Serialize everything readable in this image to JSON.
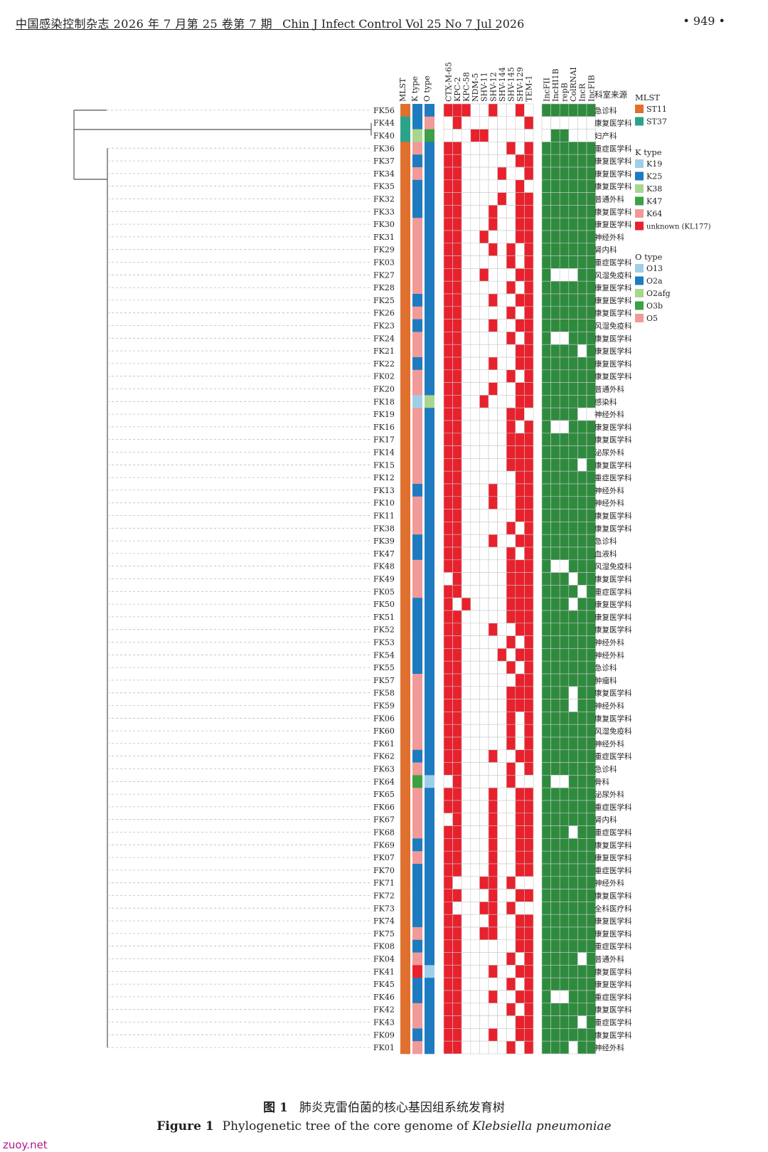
{
  "header": {
    "journal_cn": "中国感染控制杂志 2026 年 7 月第 25 卷第 7 期",
    "journal_en": "Chin J Infect Control Vol 25 No 7 Jul 2026",
    "page_number": "• 949 •"
  },
  "caption": {
    "label_cn": "图 1",
    "text_cn": "肺炎克雷伯菌的核心基因组系统发育树",
    "label_en": "Figure 1",
    "text_en_prefix": "Phylogenetic tree of the core genome of",
    "text_en_species": "Klebsiella pneumoniae"
  },
  "watermark": "zuoy.net",
  "chart_data": {
    "type": "heatmap",
    "title": "",
    "meta_columns": [
      "MLST",
      "K type",
      "O type"
    ],
    "gene_columns": [
      "CTX-M-65",
      "KPC-2",
      "KPC-58",
      "NDM-5",
      "SHV-11",
      "SHV-12",
      "SHV-144",
      "SHV-145",
      "SHV-129",
      "TEM-1"
    ],
    "plasmid_columns": [
      "IncFII",
      "IncHI1B",
      "repB",
      "ColRNAI",
      "IncR",
      "IncFIB"
    ],
    "department_header": "科室来源",
    "legend": {
      "mlst": {
        "title": "MLST",
        "items": [
          {
            "label": "ST11",
            "color": "#E0702E"
          },
          {
            "label": "ST37",
            "color": "#2BA38A"
          }
        ]
      },
      "k_type": {
        "title": "K type",
        "items": [
          {
            "label": "K19",
            "color": "#9ECFEA"
          },
          {
            "label": "K25",
            "color": "#1F7BBF"
          },
          {
            "label": "K38",
            "color": "#A9D68F"
          },
          {
            "label": "K47",
            "color": "#3DA043"
          },
          {
            "label": "K64",
            "color": "#F09A9A"
          },
          {
            "label": "unknown (KL177)",
            "color": "#E8212C"
          }
        ]
      },
      "o_type": {
        "title": "O type",
        "items": [
          {
            "label": "O13",
            "color": "#9ECFEA"
          },
          {
            "label": "O2a",
            "color": "#1F7BBF"
          },
          {
            "label": "O2afg",
            "color": "#A9D68F"
          },
          {
            "label": "O3b",
            "color": "#3DA043"
          },
          {
            "label": "O5",
            "color": "#F09A9A"
          }
        ]
      }
    },
    "gene_colors": {
      "present": "#E8212C",
      "absent": "#FFFFFF"
    },
    "plasmid_colors": {
      "present": "#2E8B3E",
      "absent": "#FFFFFF"
    },
    "strains": [
      {
        "id": "FK56",
        "mlst": "ST11",
        "k": "K25",
        "o": "O2a",
        "genes": "1110010010",
        "plasmids": "111111",
        "dept": "急诊科"
      },
      {
        "id": "FK44",
        "mlst": "ST37",
        "k": "K25",
        "o": "O5",
        "genes": "0100000001",
        "plasmids": "000000",
        "dept": "康复医学科"
      },
      {
        "id": "FK40",
        "mlst": "ST37",
        "k": "K38",
        "o": "O3b",
        "genes": "0001100000",
        "plasmids": "011000",
        "dept": "妇产科"
      },
      {
        "id": "FK36",
        "mlst": "ST11",
        "k": "K64",
        "o": "O2a",
        "genes": "1100000101",
        "plasmids": "111111",
        "dept": "重症医学科"
      },
      {
        "id": "FK37",
        "mlst": "ST11",
        "k": "K25",
        "o": "O2a",
        "genes": "1100000011",
        "plasmids": "111111",
        "dept": "康复医学科"
      },
      {
        "id": "FK34",
        "mlst": "ST11",
        "k": "K64",
        "o": "O2a",
        "genes": "1100001001",
        "plasmids": "111111",
        "dept": "康复医学科"
      },
      {
        "id": "FK35",
        "mlst": "ST11",
        "k": "K25",
        "o": "O2a",
        "genes": "1100000010",
        "plasmids": "111111",
        "dept": "康复医学科"
      },
      {
        "id": "FK32",
        "mlst": "ST11",
        "k": "K25",
        "o": "O2a",
        "genes": "1100001011",
        "plasmids": "111111",
        "dept": "普通外科"
      },
      {
        "id": "FK33",
        "mlst": "ST11",
        "k": "K25",
        "o": "O2a",
        "genes": "1100010011",
        "plasmids": "111111",
        "dept": "康复医学科"
      },
      {
        "id": "FK30",
        "mlst": "ST11",
        "k": "K64",
        "o": "O2a",
        "genes": "1100010011",
        "plasmids": "111111",
        "dept": "康复医学科"
      },
      {
        "id": "FK31",
        "mlst": "ST11",
        "k": "K64",
        "o": "O2a",
        "genes": "1100100011",
        "plasmids": "111111",
        "dept": "神经外科"
      },
      {
        "id": "FK29",
        "mlst": "ST11",
        "k": "K64",
        "o": "O2a",
        "genes": "1100010101",
        "plasmids": "111111",
        "dept": "肾内科"
      },
      {
        "id": "FK03",
        "mlst": "ST11",
        "k": "K64",
        "o": "O2a",
        "genes": "1100000101",
        "plasmids": "111111",
        "dept": "重症医学科"
      },
      {
        "id": "FK27",
        "mlst": "ST11",
        "k": "K64",
        "o": "O2a",
        "genes": "1100100011",
        "plasmids": "100011",
        "dept": "风湿免疫科"
      },
      {
        "id": "FK28",
        "mlst": "ST11",
        "k": "K64",
        "o": "O2a",
        "genes": "1100000101",
        "plasmids": "111111",
        "dept": "康复医学科"
      },
      {
        "id": "FK25",
        "mlst": "ST11",
        "k": "K25",
        "o": "O2a",
        "genes": "1100010011",
        "plasmids": "111111",
        "dept": "康复医学科"
      },
      {
        "id": "FK26",
        "mlst": "ST11",
        "k": "K64",
        "o": "O2a",
        "genes": "1100000101",
        "plasmids": "111111",
        "dept": "康复医学科"
      },
      {
        "id": "FK23",
        "mlst": "ST11",
        "k": "K25",
        "o": "O2a",
        "genes": "1100010011",
        "plasmids": "111111",
        "dept": "风湿免疫科"
      },
      {
        "id": "FK24",
        "mlst": "ST11",
        "k": "K64",
        "o": "O2a",
        "genes": "1100000101",
        "plasmids": "100111",
        "dept": "康复医学科"
      },
      {
        "id": "FK21",
        "mlst": "ST11",
        "k": "K64",
        "o": "O2a",
        "genes": "1100000011",
        "plasmids": "111101",
        "dept": "康复医学科"
      },
      {
        "id": "FK22",
        "mlst": "ST11",
        "k": "K25",
        "o": "O2a",
        "genes": "1100010011",
        "plasmids": "111111",
        "dept": "康复医学科"
      },
      {
        "id": "FK02",
        "mlst": "ST11",
        "k": "K64",
        "o": "O2a",
        "genes": "1100000101",
        "plasmids": "111111",
        "dept": "康复医学科"
      },
      {
        "id": "FK20",
        "mlst": "ST11",
        "k": "K64",
        "o": "O2a",
        "genes": "1100010011",
        "plasmids": "111111",
        "dept": "普通外科"
      },
      {
        "id": "FK18",
        "mlst": "ST11",
        "k": "K19",
        "o": "O2afg",
        "genes": "1100100011",
        "plasmids": "111111",
        "dept": "感染科"
      },
      {
        "id": "FK19",
        "mlst": "ST11",
        "k": "K64",
        "o": "O2a",
        "genes": "1100000110",
        "plasmids": "111100",
        "dept": "神经外科"
      },
      {
        "id": "FK16",
        "mlst": "ST11",
        "k": "K64",
        "o": "O2a",
        "genes": "1100000101",
        "plasmids": "100111",
        "dept": "康复医学科"
      },
      {
        "id": "FK17",
        "mlst": "ST11",
        "k": "K64",
        "o": "O2a",
        "genes": "1100000111",
        "plasmids": "111111",
        "dept": "康复医学科"
      },
      {
        "id": "FK14",
        "mlst": "ST11",
        "k": "K64",
        "o": "O2a",
        "genes": "1100000111",
        "plasmids": "111111",
        "dept": "泌尿外科"
      },
      {
        "id": "FK15",
        "mlst": "ST11",
        "k": "K64",
        "o": "O2a",
        "genes": "1100000111",
        "plasmids": "111101",
        "dept": "康复医学科"
      },
      {
        "id": "FK12",
        "mlst": "ST11",
        "k": "K64",
        "o": "O2a",
        "genes": "1100000011",
        "plasmids": "111111",
        "dept": "重症医学科"
      },
      {
        "id": "FK13",
        "mlst": "ST11",
        "k": "K25",
        "o": "O2a",
        "genes": "1100010011",
        "plasmids": "111111",
        "dept": "神经外科"
      },
      {
        "id": "FK10",
        "mlst": "ST11",
        "k": "K64",
        "o": "O2a",
        "genes": "1100010011",
        "plasmids": "111111",
        "dept": "神经外科"
      },
      {
        "id": "FK11",
        "mlst": "ST11",
        "k": "K64",
        "o": "O2a",
        "genes": "1100000011",
        "plasmids": "111111",
        "dept": "康复医学科"
      },
      {
        "id": "FK38",
        "mlst": "ST11",
        "k": "K64",
        "o": "O2a",
        "genes": "1100000101",
        "plasmids": "111111",
        "dept": "康复医学科"
      },
      {
        "id": "FK39",
        "mlst": "ST11",
        "k": "K25",
        "o": "O2a",
        "genes": "1100010011",
        "plasmids": "111111",
        "dept": "急诊科"
      },
      {
        "id": "FK47",
        "mlst": "ST11",
        "k": "K25",
        "o": "O2a",
        "genes": "1100000101",
        "plasmids": "111111",
        "dept": "血液科"
      },
      {
        "id": "FK48",
        "mlst": "ST11",
        "k": "K64",
        "o": "O2a",
        "genes": "1100000111",
        "plasmids": "100111",
        "dept": "风湿免疫科"
      },
      {
        "id": "FK49",
        "mlst": "ST11",
        "k": "K64",
        "o": "O2a",
        "genes": "0100000111",
        "plasmids": "111011",
        "dept": "康复医学科"
      },
      {
        "id": "FK05",
        "mlst": "ST11",
        "k": "K64",
        "o": "O2a",
        "genes": "1100000111",
        "plasmids": "111101",
        "dept": "重症医学科"
      },
      {
        "id": "FK50",
        "mlst": "ST11",
        "k": "K25",
        "o": "O2a",
        "genes": "1010000111",
        "plasmids": "111011",
        "dept": "康复医学科"
      },
      {
        "id": "FK51",
        "mlst": "ST11",
        "k": "K25",
        "o": "O2a",
        "genes": "1100000111",
        "plasmids": "111111",
        "dept": "康复医学科"
      },
      {
        "id": "FK52",
        "mlst": "ST11",
        "k": "K25",
        "o": "O2a",
        "genes": "1100010011",
        "plasmids": "111111",
        "dept": "康复医学科"
      },
      {
        "id": "FK53",
        "mlst": "ST11",
        "k": "K25",
        "o": "O2a",
        "genes": "1100000101",
        "plasmids": "111111",
        "dept": "神经外科"
      },
      {
        "id": "FK54",
        "mlst": "ST11",
        "k": "K25",
        "o": "O2a",
        "genes": "1100001011",
        "plasmids": "111111",
        "dept": "神经外科"
      },
      {
        "id": "FK55",
        "mlst": "ST11",
        "k": "K25",
        "o": "O2a",
        "genes": "1100000101",
        "plasmids": "111111",
        "dept": "急诊科"
      },
      {
        "id": "FK57",
        "mlst": "ST11",
        "k": "K64",
        "o": "O2a",
        "genes": "1100000011",
        "plasmids": "111111",
        "dept": "肿瘤科"
      },
      {
        "id": "FK58",
        "mlst": "ST11",
        "k": "K64",
        "o": "O2a",
        "genes": "1100000111",
        "plasmids": "111011",
        "dept": "康复医学科"
      },
      {
        "id": "FK59",
        "mlst": "ST11",
        "k": "K64",
        "o": "O2a",
        "genes": "1100000111",
        "plasmids": "111011",
        "dept": "神经外科"
      },
      {
        "id": "FK06",
        "mlst": "ST11",
        "k": "K64",
        "o": "O2a",
        "genes": "1100000101",
        "plasmids": "111111",
        "dept": "康复医学科"
      },
      {
        "id": "FK60",
        "mlst": "ST11",
        "k": "K64",
        "o": "O2a",
        "genes": "1100000101",
        "plasmids": "111111",
        "dept": "风湿免疫科"
      },
      {
        "id": "FK61",
        "mlst": "ST11",
        "k": "K64",
        "o": "O2a",
        "genes": "1100000101",
        "plasmids": "111111",
        "dept": "神经外科"
      },
      {
        "id": "FK62",
        "mlst": "ST11",
        "k": "K25",
        "o": "O2a",
        "genes": "1100010011",
        "plasmids": "111111",
        "dept": "重症医学科"
      },
      {
        "id": "FK63",
        "mlst": "ST11",
        "k": "K64",
        "o": "O2a",
        "genes": "1100000101",
        "plasmids": "111111",
        "dept": "急诊科"
      },
      {
        "id": "FK64",
        "mlst": "ST11",
        "k": "K47",
        "o": "O13",
        "genes": "0100000100",
        "plasmids": "100111",
        "dept": "骨科"
      },
      {
        "id": "FK65",
        "mlst": "ST11",
        "k": "K64",
        "o": "O2a",
        "genes": "1100010011",
        "plasmids": "111111",
        "dept": "泌尿外科"
      },
      {
        "id": "FK66",
        "mlst": "ST11",
        "k": "K64",
        "o": "O2a",
        "genes": "1100010011",
        "plasmids": "111111",
        "dept": "重症医学科"
      },
      {
        "id": "FK67",
        "mlst": "ST11",
        "k": "K64",
        "o": "O2a",
        "genes": "0100010011",
        "plasmids": "111111",
        "dept": "肾内科"
      },
      {
        "id": "FK68",
        "mlst": "ST11",
        "k": "K64",
        "o": "O2a",
        "genes": "1100010011",
        "plasmids": "111011",
        "dept": "重症医学科"
      },
      {
        "id": "FK69",
        "mlst": "ST11",
        "k": "K25",
        "o": "O2a",
        "genes": "1100010011",
        "plasmids": "111111",
        "dept": "康复医学科"
      },
      {
        "id": "FK07",
        "mlst": "ST11",
        "k": "K64",
        "o": "O2a",
        "genes": "1100010011",
        "plasmids": "111111",
        "dept": "康复医学科"
      },
      {
        "id": "FK70",
        "mlst": "ST11",
        "k": "K25",
        "o": "O2a",
        "genes": "1100010011",
        "plasmids": "111111",
        "dept": "重症医学科"
      },
      {
        "id": "FK71",
        "mlst": "ST11",
        "k": "K25",
        "o": "O2a",
        "genes": "1000110100",
        "plasmids": "111111",
        "dept": "神经外科"
      },
      {
        "id": "FK72",
        "mlst": "ST11",
        "k": "K25",
        "o": "O2a",
        "genes": "1100010011",
        "plasmids": "111111",
        "dept": "康复医学科"
      },
      {
        "id": "FK73",
        "mlst": "ST11",
        "k": "K25",
        "o": "O2a",
        "genes": "1000110100",
        "plasmids": "111111",
        "dept": "全科医疗科"
      },
      {
        "id": "FK74",
        "mlst": "ST11",
        "k": "K25",
        "o": "O2a",
        "genes": "1100010011",
        "plasmids": "111111",
        "dept": "康复医学科"
      },
      {
        "id": "FK75",
        "mlst": "ST11",
        "k": "K64",
        "o": "O2a",
        "genes": "1100110011",
        "plasmids": "111111",
        "dept": "康复医学科"
      },
      {
        "id": "FK08",
        "mlst": "ST11",
        "k": "K25",
        "o": "O2a",
        "genes": "1100000011",
        "plasmids": "111111",
        "dept": "重症医学科"
      },
      {
        "id": "FK04",
        "mlst": "ST11",
        "k": "K64",
        "o": "O2a",
        "genes": "1100000101",
        "plasmids": "111101",
        "dept": "普通外科"
      },
      {
        "id": "FK41",
        "mlst": "ST11",
        "k": "unknown (KL177)",
        "o": "O13",
        "genes": "1100010011",
        "plasmids": "111111",
        "dept": "康复医学科"
      },
      {
        "id": "FK45",
        "mlst": "ST11",
        "k": "K25",
        "o": "O2a",
        "genes": "1100000101",
        "plasmids": "111111",
        "dept": "康复医学科"
      },
      {
        "id": "FK46",
        "mlst": "ST11",
        "k": "K25",
        "o": "O2a",
        "genes": "1100010011",
        "plasmids": "100111",
        "dept": "重症医学科"
      },
      {
        "id": "FK42",
        "mlst": "ST11",
        "k": "K64",
        "o": "O2a",
        "genes": "1100000101",
        "plasmids": "111111",
        "dept": "康复医学科"
      },
      {
        "id": "FK43",
        "mlst": "ST11",
        "k": "K64",
        "o": "O2a",
        "genes": "1100000011",
        "plasmids": "111101",
        "dept": "重症医学科"
      },
      {
        "id": "FK09",
        "mlst": "ST11",
        "k": "K25",
        "o": "O2a",
        "genes": "1100010011",
        "plasmids": "111111",
        "dept": "康复医学科"
      },
      {
        "id": "FK01",
        "mlst": "ST11",
        "k": "K64",
        "o": "O2a",
        "genes": "1100000101",
        "plasmids": "111011",
        "dept": "神经外科"
      }
    ]
  }
}
